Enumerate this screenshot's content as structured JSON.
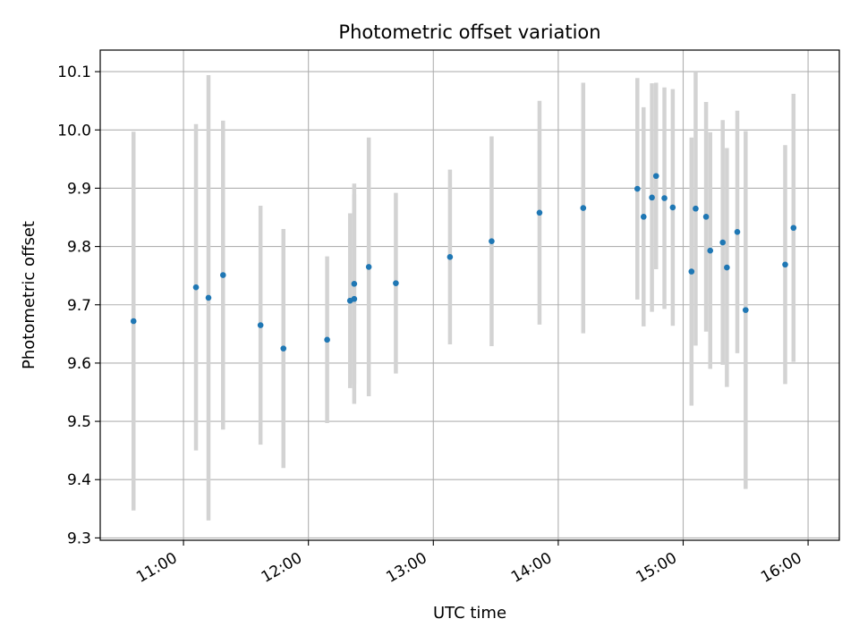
{
  "chart_data": {
    "type": "scatter",
    "title": "Photometric offset variation",
    "xlabel": "UTC time",
    "ylabel": "Photometric offset",
    "x_tick_labels": [
      "11:00",
      "12:00",
      "13:00",
      "14:00",
      "15:00",
      "16:00"
    ],
    "y_tick_labels": [
      "9.3",
      "9.4",
      "9.5",
      "9.6",
      "9.7",
      "9.8",
      "9.9",
      "10.0",
      "10.1"
    ],
    "xlim": [
      "10:20",
      "16:15"
    ],
    "ylim": [
      9.296,
      10.137
    ],
    "grid": true,
    "point_color": "#1f77b4",
    "errorbar_color": "#d3d3d3",
    "points": [
      {
        "x": "10:36",
        "y": 9.672,
        "err": 0.325
      },
      {
        "x": "11:06",
        "y": 9.73,
        "err": 0.28
      },
      {
        "x": "11:12",
        "y": 9.712,
        "err": 0.382
      },
      {
        "x": "11:19",
        "y": 9.751,
        "err": 0.265
      },
      {
        "x": "11:37",
        "y": 9.665,
        "err": 0.205
      },
      {
        "x": "11:48",
        "y": 9.625,
        "err": 0.205
      },
      {
        "x": "12:09",
        "y": 9.64,
        "err": 0.143
      },
      {
        "x": "12:20",
        "y": 9.707,
        "err": 0.15
      },
      {
        "x": "12:22",
        "y": 9.736,
        "err": 0.172
      },
      {
        "x": "12:22",
        "y": 9.71,
        "err": 0.18
      },
      {
        "x": "12:29",
        "y": 9.765,
        "err": 0.222
      },
      {
        "x": "12:42",
        "y": 9.737,
        "err": 0.155
      },
      {
        "x": "13:08",
        "y": 9.782,
        "err": 0.15
      },
      {
        "x": "13:28",
        "y": 9.809,
        "err": 0.18
      },
      {
        "x": "13:51",
        "y": 9.858,
        "err": 0.192
      },
      {
        "x": "14:12",
        "y": 9.866,
        "err": 0.215
      },
      {
        "x": "14:38",
        "y": 9.899,
        "err": 0.19
      },
      {
        "x": "14:41",
        "y": 9.851,
        "err": 0.188
      },
      {
        "x": "14:45",
        "y": 9.884,
        "err": 0.196
      },
      {
        "x": "14:47",
        "y": 9.921,
        "err": 0.16
      },
      {
        "x": "14:51",
        "y": 9.883,
        "err": 0.19
      },
      {
        "x": "14:55",
        "y": 9.867,
        "err": 0.203
      },
      {
        "x": "15:04",
        "y": 9.757,
        "err": 0.23
      },
      {
        "x": "15:06",
        "y": 9.865,
        "err": 0.235
      },
      {
        "x": "15:11",
        "y": 9.851,
        "err": 0.197
      },
      {
        "x": "15:13",
        "y": 9.793,
        "err": 0.203
      },
      {
        "x": "15:19",
        "y": 9.807,
        "err": 0.21
      },
      {
        "x": "15:21",
        "y": 9.764,
        "err": 0.205
      },
      {
        "x": "15:26",
        "y": 9.825,
        "err": 0.208
      },
      {
        "x": "15:30",
        "y": 9.691,
        "err": 0.307
      },
      {
        "x": "15:49",
        "y": 9.769,
        "err": 0.205
      },
      {
        "x": "15:53",
        "y": 9.832,
        "err": 0.23
      }
    ]
  }
}
